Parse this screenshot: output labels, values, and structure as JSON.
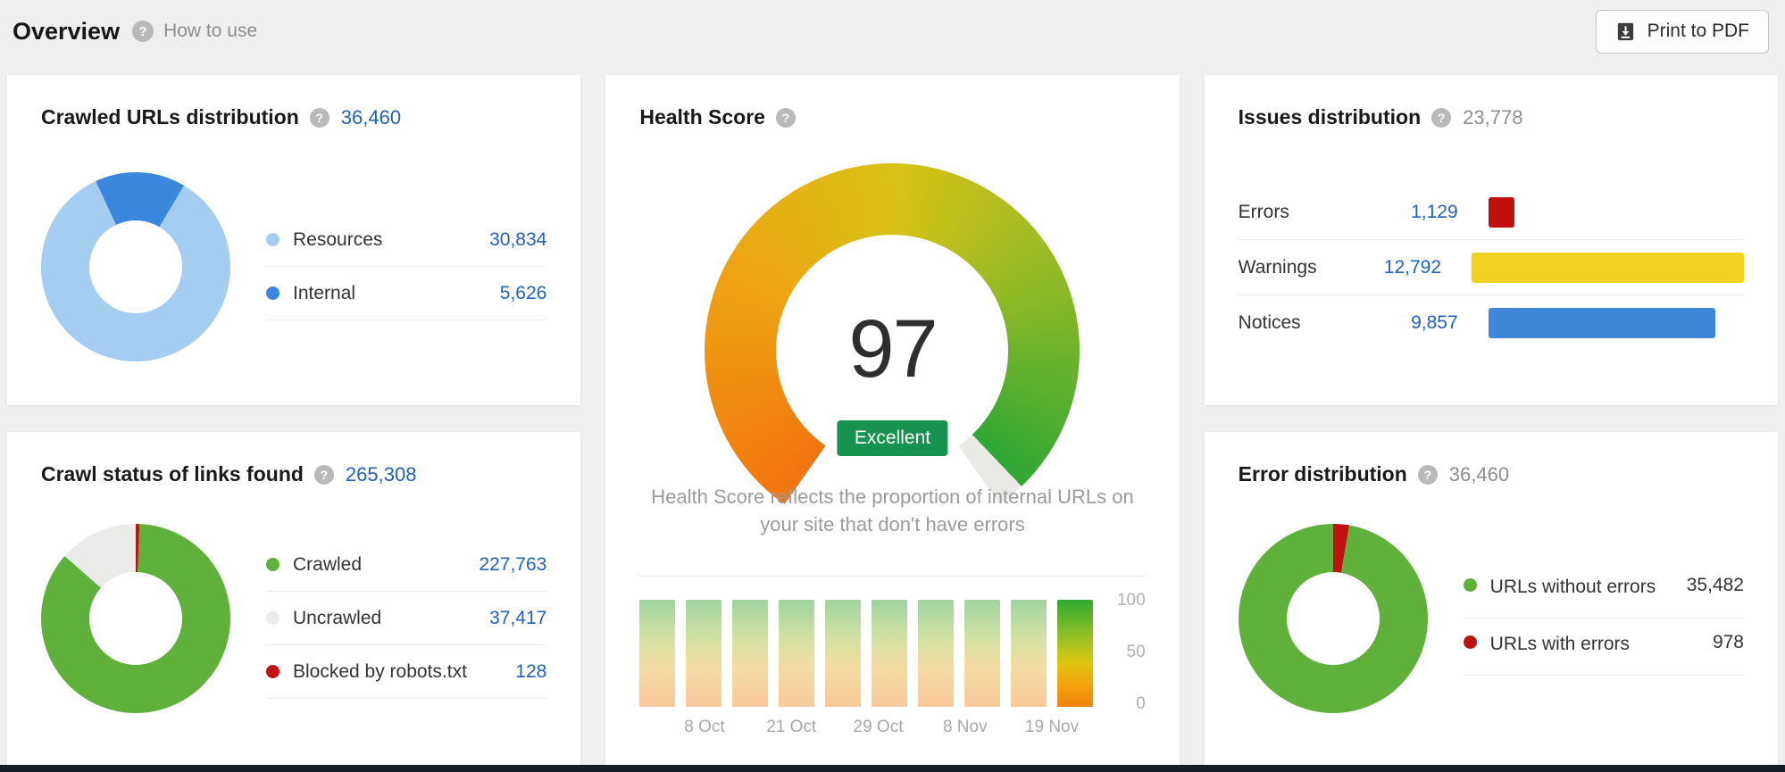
{
  "header": {
    "title": "Overview",
    "how_to_use": "How to use",
    "print_button": "Print to PDF"
  },
  "cards": {
    "crawled_urls": {
      "title": "Crawled URLs distribution",
      "total": "36,460",
      "legend": [
        {
          "label": "Resources",
          "value": "30,834",
          "color": "#a5cdf2"
        },
        {
          "label": "Internal",
          "value": "5,626",
          "color": "#3a87dd"
        }
      ],
      "donut": {
        "start_deg": 335,
        "segments": [
          {
            "name": "Internal",
            "value": 5626,
            "color": "#3a87dd"
          },
          {
            "name": "Resources",
            "value": 30834,
            "color": "#a5cdf2"
          }
        ]
      }
    },
    "health_score": {
      "title": "Health Score",
      "score": "97",
      "badge": "Excellent",
      "description": "Health Score reflects the proportion of internal URLs on your site that don't have errors",
      "trend": {
        "values": [
          97,
          97,
          97,
          97,
          97,
          97,
          97,
          97,
          97,
          97
        ],
        "x_labels": [
          "8 Oct",
          "21 Oct",
          "29 Oct",
          "8 Nov",
          "19 Nov"
        ],
        "y_labels": [
          "100",
          "50",
          "0"
        ]
      }
    },
    "issues": {
      "title": "Issues distribution",
      "total": "23,778",
      "rows": [
        {
          "label": "Errors",
          "value": "1,129",
          "color": "#c40f0f"
        },
        {
          "label": "Warnings",
          "value": "12,792",
          "color": "#f0d321"
        },
        {
          "label": "Notices",
          "value": "9,857",
          "color": "#3d86d8"
        }
      ]
    },
    "crawl_status": {
      "title": "Crawl status of links found",
      "total": "265,308",
      "legend": [
        {
          "label": "Crawled",
          "value": "227,763",
          "color": "#5fb13c"
        },
        {
          "label": "Uncrawled",
          "value": "37,417",
          "color": "#ebebe9"
        },
        {
          "label": "Blocked by robots.txt",
          "value": "128",
          "color": "#c21111"
        }
      ],
      "donut": {
        "start_deg": 0,
        "segments": [
          {
            "name": "Blocked by robots.txt",
            "value": 128,
            "color": "#c21111"
          },
          {
            "name": "Crawled",
            "value": 227763,
            "color": "#5fb13c"
          },
          {
            "name": "Uncrawled",
            "value": 37417,
            "color": "#ebebe9"
          }
        ]
      }
    },
    "error_distribution": {
      "title": "Error distribution",
      "total": "36,460",
      "legend": [
        {
          "label": "URLs without errors",
          "value": "35,482",
          "color": "#5fb13c"
        },
        {
          "label": "URLs with errors",
          "value": "978",
          "color": "#c21111"
        }
      ],
      "donut": {
        "start_deg": 0,
        "segments": [
          {
            "name": "URLs with errors",
            "value": 978,
            "color": "#c21111"
          },
          {
            "name": "URLs without errors",
            "value": 35482,
            "color": "#5fb13c"
          }
        ]
      }
    }
  },
  "chart_data": [
    {
      "type": "pie",
      "title": "Crawled URLs distribution",
      "total": 36460,
      "labels": [
        "Resources",
        "Internal"
      ],
      "values": [
        30834,
        5626
      ],
      "colors": [
        "#a5cdf2",
        "#3a87dd"
      ]
    },
    {
      "type": "gauge",
      "title": "Health Score",
      "value": 97,
      "max": 100,
      "label": "Excellent"
    },
    {
      "type": "bar",
      "title": "Health Score trend",
      "categories": [
        "8 Oct",
        "",
        "21 Oct",
        "",
        "29 Oct",
        "",
        "8 Nov",
        "",
        "",
        "19 Nov"
      ],
      "values": [
        97,
        97,
        97,
        97,
        97,
        97,
        97,
        97,
        97,
        97
      ],
      "ylim": [
        0,
        100
      ],
      "ylabel": ""
    },
    {
      "type": "bar",
      "title": "Issues distribution",
      "total": 23778,
      "categories": [
        "Errors",
        "Warnings",
        "Notices"
      ],
      "values": [
        1129,
        12792,
        9857
      ],
      "colors": [
        "#c40f0f",
        "#f0d321",
        "#3d86d8"
      ]
    },
    {
      "type": "pie",
      "title": "Crawl status of links found",
      "total": 265308,
      "labels": [
        "Crawled",
        "Uncrawled",
        "Blocked by robots.txt"
      ],
      "values": [
        227763,
        37417,
        128
      ],
      "colors": [
        "#5fb13c",
        "#ebebe9",
        "#c21111"
      ]
    },
    {
      "type": "pie",
      "title": "Error distribution",
      "total": 36460,
      "labels": [
        "URLs without errors",
        "URLs with errors"
      ],
      "values": [
        35482,
        978
      ],
      "colors": [
        "#5fb13c",
        "#c21111"
      ]
    }
  ]
}
